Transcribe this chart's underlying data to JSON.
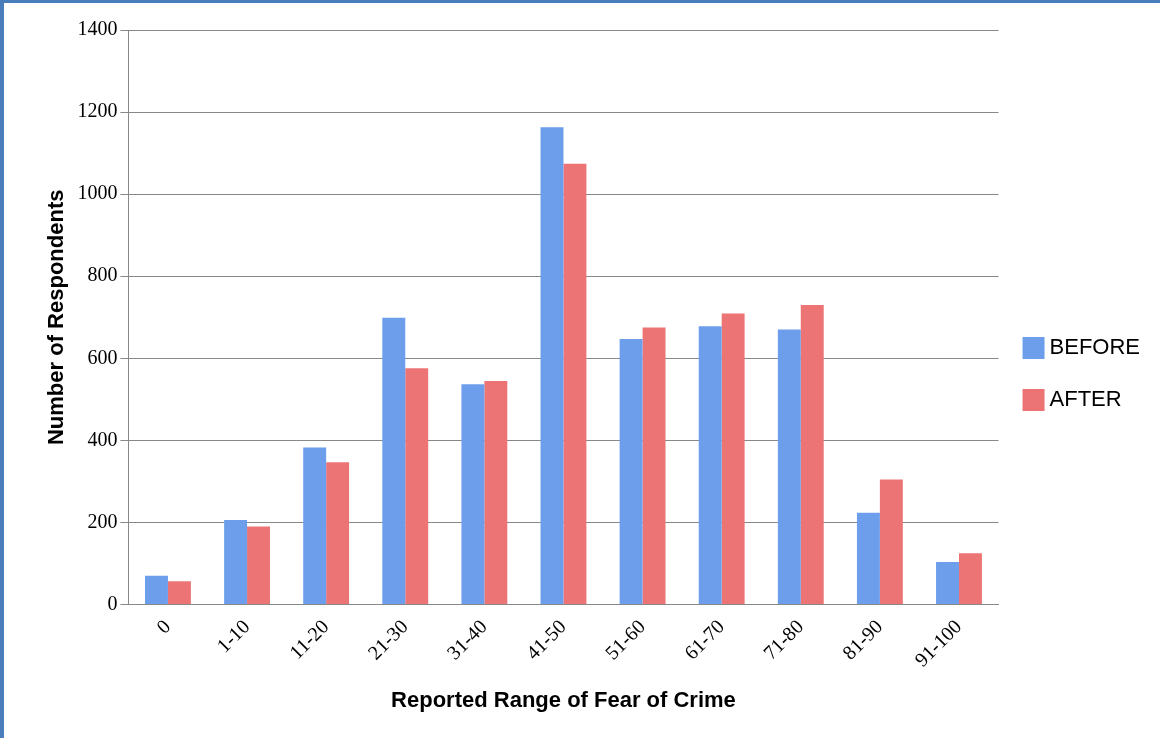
{
  "chart_data": {
    "type": "bar",
    "xlabel": "Reported Range of Fear of Crime",
    "ylabel": "Number of Respondents",
    "categories": [
      "0",
      "1-10",
      "11-20",
      "21-30",
      "31-40",
      "41-50",
      "51-60",
      "61-70",
      "71-80",
      "81-90",
      "91-100"
    ],
    "series": [
      {
        "name": "BEFORE",
        "color": "#6d9eeb",
        "values": [
          70,
          206,
          383,
          699,
          537,
          1163,
          647,
          678,
          670,
          224,
          104
        ]
      },
      {
        "name": "AFTER",
        "color": "#ec7474",
        "values": [
          57,
          190,
          347,
          576,
          545,
          1074,
          675,
          709,
          730,
          305,
          125
        ]
      }
    ],
    "ylim": [
      0,
      1400
    ],
    "yticks": [
      0,
      200,
      400,
      600,
      800,
      1000,
      1200,
      1400
    ],
    "grid": "y",
    "legend": "right"
  }
}
